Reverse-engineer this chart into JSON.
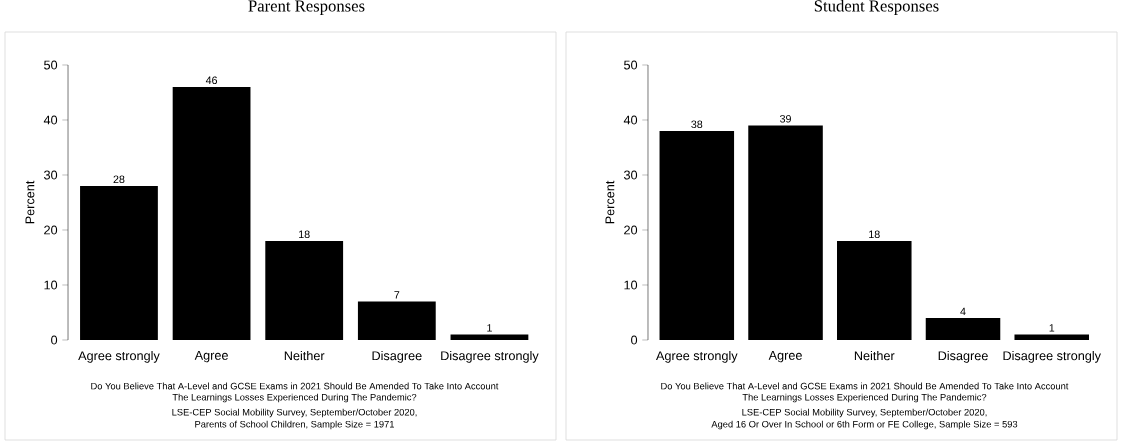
{
  "chart_data": [
    {
      "type": "bar",
      "title": "Parent Responses",
      "ylabel": "Percent",
      "categories": [
        "Agree strongly",
        "Agree",
        "Neither",
        "Disagree",
        "Disagree strongly"
      ],
      "values": [
        28,
        46,
        18,
        7,
        1
      ],
      "color": "#000000",
      "ylim": [
        0,
        50
      ],
      "yticks": [
        0,
        10,
        20,
        30,
        40,
        50
      ],
      "data_labels": true,
      "annotations": [
        "Do You Believe That A-Level and GCSE Exams in 2021 Should Be Amended To Take Into Account",
        "The Learnings Losses Experienced During The Pandemic?",
        "LSE-CEP Social Mobility Survey, September/October 2020,",
        "Parents of School Children, Sample Size = 1971"
      ]
    },
    {
      "type": "bar",
      "title": "Student Responses",
      "ylabel": "Percent",
      "categories": [
        "Agree strongly",
        "Agree",
        "Neither",
        "Disagree",
        "Disagree strongly"
      ],
      "values": [
        38,
        39,
        18,
        4,
        1
      ],
      "color": "#000000",
      "ylim": [
        0,
        50
      ],
      "yticks": [
        0,
        10,
        20,
        30,
        40,
        50
      ],
      "data_labels": true,
      "annotations": [
        "Do You Believe That A-Level and GCSE Exams in 2021 Should Be Amended To Take Into Account",
        "The Learnings Losses Experienced During The Pandemic?",
        "LSE-CEP Social Mobility Survey, September/October 2020,",
        "Aged 16 Or Over In School or 6th Form or FE College, Sample Size = 593"
      ]
    }
  ]
}
